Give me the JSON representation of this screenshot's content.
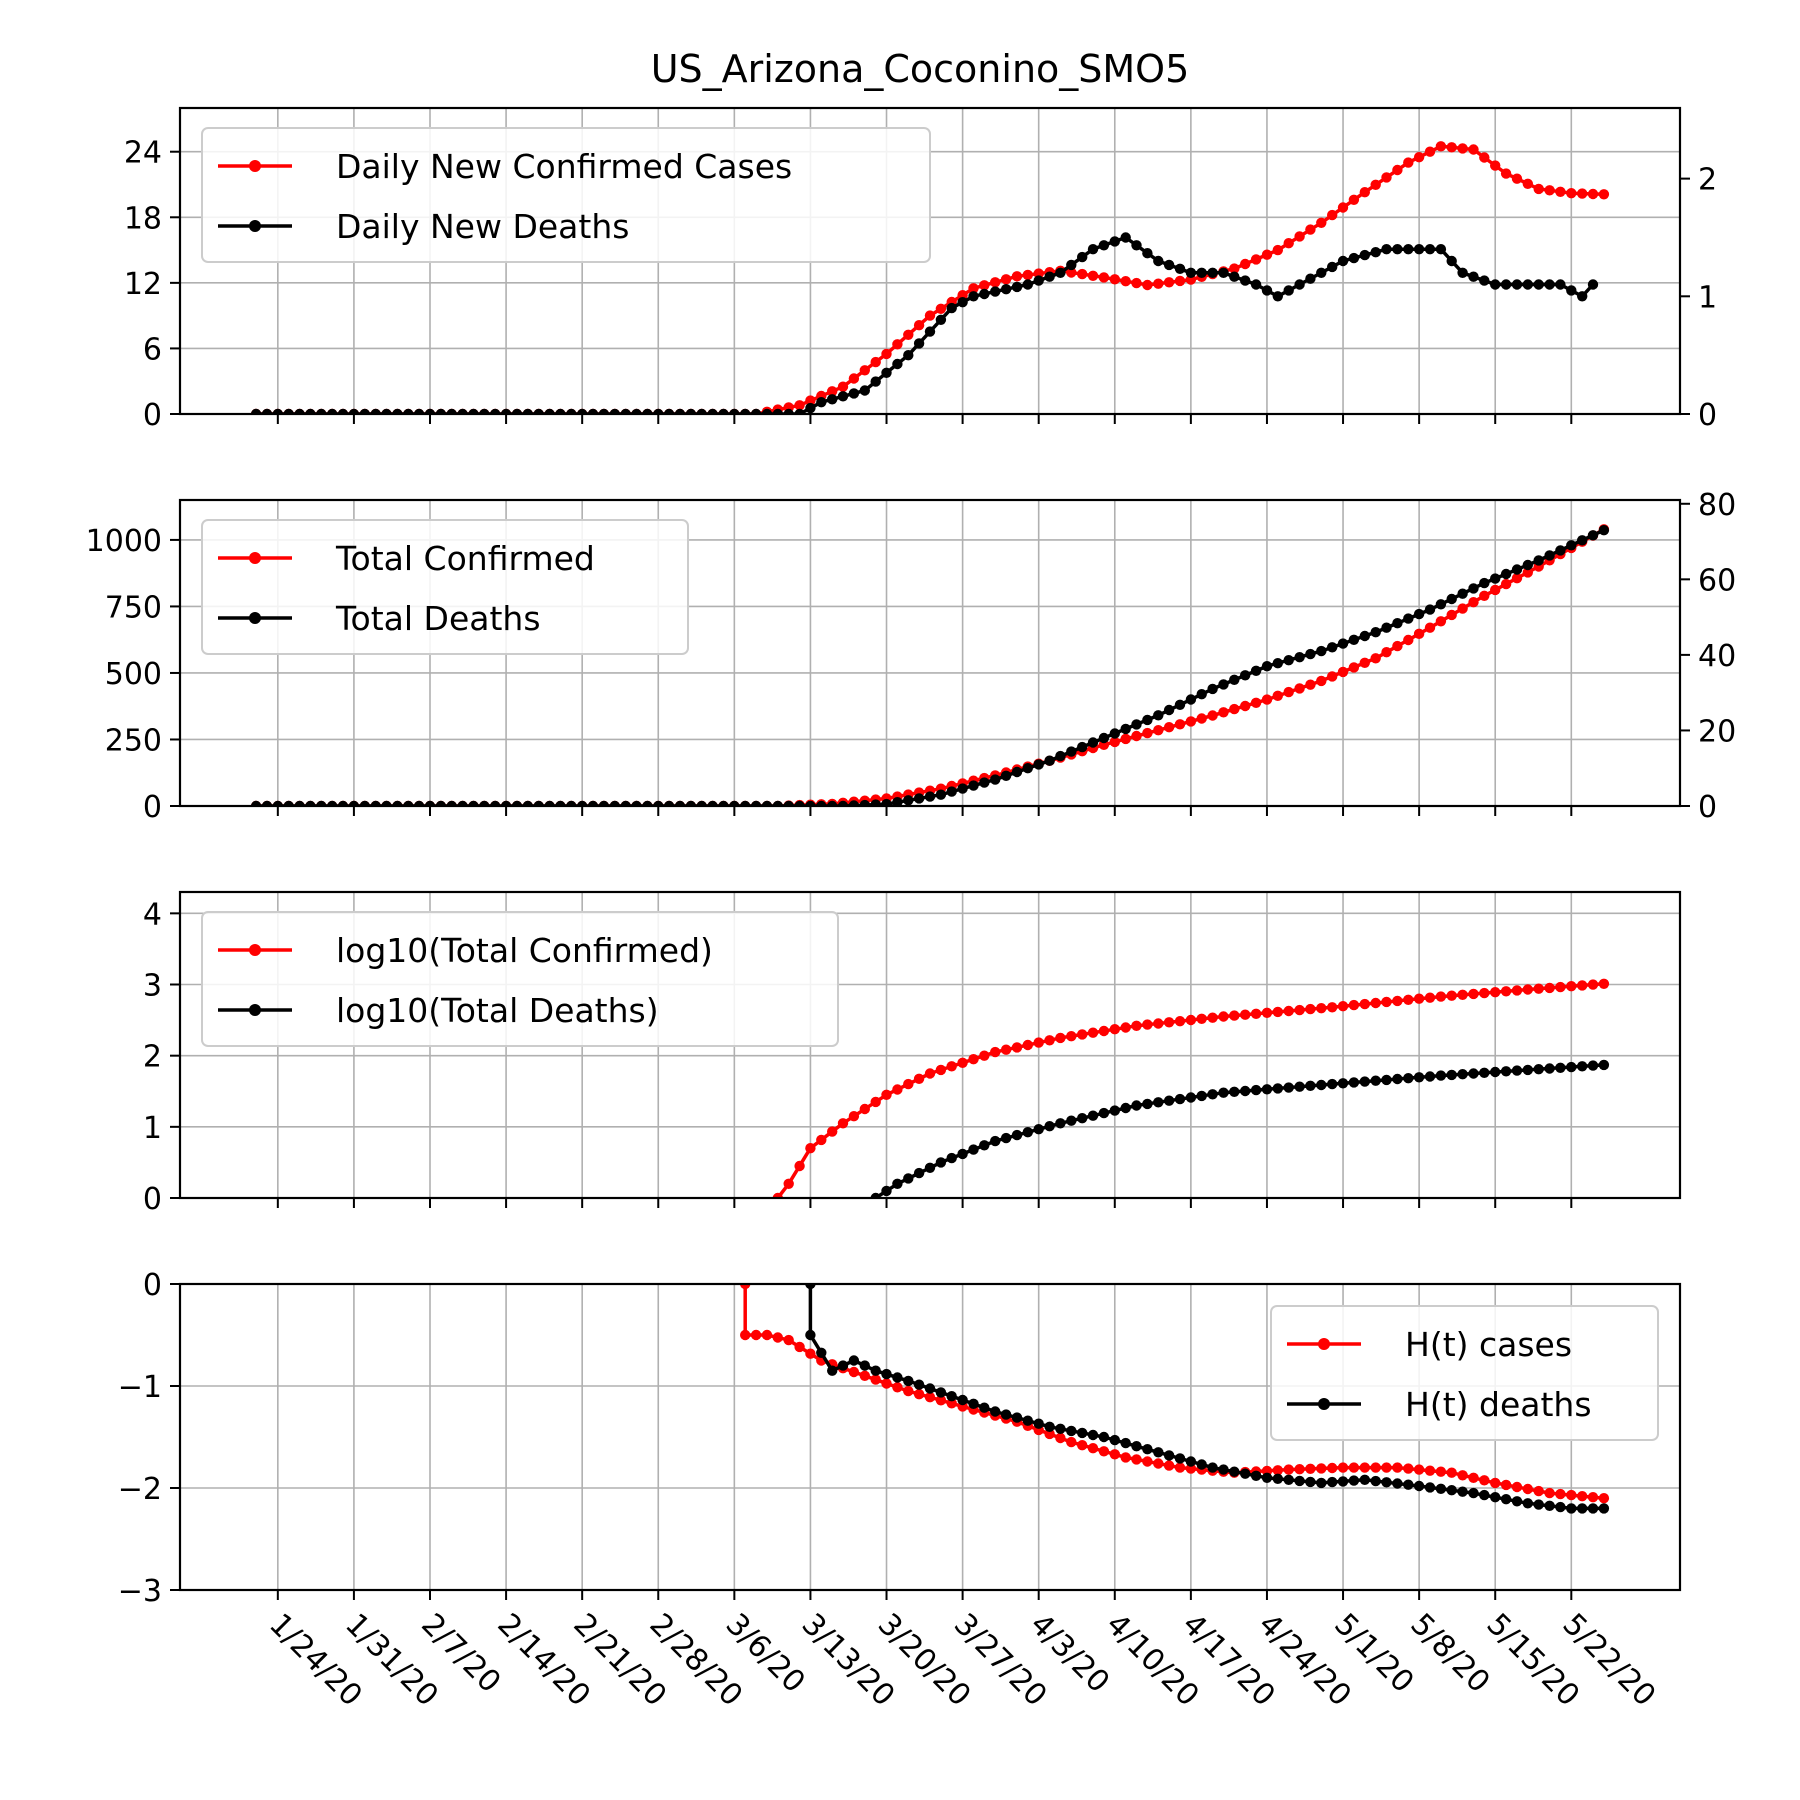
{
  "figure": {
    "title": "US_Arizona_Coconino_SMO5",
    "colors": {
      "cases": "#ff0000",
      "deaths": "#000000",
      "grid": "#b0b0b0"
    },
    "x_tick_labels": [
      "1/24/20",
      "1/31/20",
      "2/7/20",
      "2/14/20",
      "2/21/20",
      "2/28/20",
      "3/6/20",
      "3/13/20",
      "3/20/20",
      "3/27/20",
      "4/3/20",
      "4/10/20",
      "4/17/20",
      "4/24/20",
      "5/1/20",
      "5/8/20",
      "5/15/20",
      "5/22/20"
    ]
  },
  "chart_data": [
    {
      "type": "line",
      "x_axis": "date",
      "x_range": [
        "1/15/20",
        "6/1/20"
      ],
      "ylim": [
        0,
        28
      ],
      "yticks": [
        0,
        6,
        12,
        18,
        24
      ],
      "y2lim": [
        0,
        2.6
      ],
      "y2ticks": [
        0,
        1,
        2
      ],
      "grid": true,
      "legend_position": "upper-left",
      "series": [
        {
          "name": "Daily New Confirmed Cases",
          "axis": "left",
          "color": "#ff0000",
          "points": [
            [
              "1/22/20",
              0
            ],
            [
              "3/8/20",
              0
            ],
            [
              "3/12/20",
              0.8
            ],
            [
              "3/16/20",
              2.5
            ],
            [
              "3/20/20",
              5.5
            ],
            [
              "3/24/20",
              9
            ],
            [
              "3/28/20",
              11.5
            ],
            [
              "4/1/20",
              12.6
            ],
            [
              "4/5/20",
              13.1
            ],
            [
              "4/9/20",
              12.5
            ],
            [
              "4/13/20",
              11.8
            ],
            [
              "4/17/20",
              12.3
            ],
            [
              "4/21/20",
              13.3
            ],
            [
              "4/25/20",
              15
            ],
            [
              "4/29/20",
              17.5
            ],
            [
              "5/3/20",
              20.3
            ],
            [
              "5/7/20",
              23
            ],
            [
              "5/10/20",
              24.5
            ],
            [
              "5/13/20",
              24.2
            ],
            [
              "5/16/20",
              22
            ],
            [
              "5/19/20",
              20.6
            ],
            [
              "5/22/20",
              20.2
            ],
            [
              "5/25/20",
              20.1
            ]
          ]
        },
        {
          "name": "Daily New Deaths",
          "axis": "right",
          "color": "#000000",
          "points": [
            [
              "1/22/20",
              0
            ],
            [
              "3/12/20",
              0
            ],
            [
              "3/14/20",
              0.1
            ],
            [
              "3/18/20",
              0.2
            ],
            [
              "3/20/20",
              0.35
            ],
            [
              "3/22/20",
              0.5
            ],
            [
              "3/24/20",
              0.7
            ],
            [
              "3/26/20",
              0.9
            ],
            [
              "3/28/20",
              1
            ],
            [
              "4/2/20",
              1.1
            ],
            [
              "4/5/20",
              1.2
            ],
            [
              "4/8/20",
              1.4
            ],
            [
              "4/11/20",
              1.5
            ],
            [
              "4/14/20",
              1.3
            ],
            [
              "4/17/20",
              1.2
            ],
            [
              "4/20/20",
              1.2
            ],
            [
              "4/23/20",
              1.1
            ],
            [
              "4/25/20",
              1
            ],
            [
              "4/27/20",
              1.1
            ],
            [
              "5/1/20",
              1.3
            ],
            [
              "5/5/20",
              1.4
            ],
            [
              "5/10/20",
              1.4
            ],
            [
              "5/12/20",
              1.2
            ],
            [
              "5/15/20",
              1.1
            ],
            [
              "5/21/20",
              1.1
            ],
            [
              "5/23/20",
              1
            ],
            [
              "5/24/20",
              1.1
            ]
          ]
        }
      ]
    },
    {
      "type": "line",
      "x_axis": "date",
      "x_range": [
        "1/15/20",
        "6/1/20"
      ],
      "ylim": [
        0,
        1150
      ],
      "yticks": [
        0,
        250,
        500,
        750,
        1000
      ],
      "y2lim": [
        0,
        81
      ],
      "y2ticks": [
        0,
        20,
        40,
        60,
        80
      ],
      "grid": true,
      "legend_position": "upper-left",
      "series": [
        {
          "name": "Total Confirmed",
          "axis": "left",
          "color": "#ff0000",
          "points": [
            [
              "1/22/20",
              0
            ],
            [
              "3/10/20",
              0
            ],
            [
              "3/15/20",
              8
            ],
            [
              "3/20/20",
              28
            ],
            [
              "3/25/20",
              65
            ],
            [
              "3/30/20",
              115
            ],
            [
              "4/4/20",
              170
            ],
            [
              "4/9/20",
              230
            ],
            [
              "4/14/20",
              285
            ],
            [
              "4/19/20",
              340
            ],
            [
              "4/24/20",
              400
            ],
            [
              "4/29/20",
              470
            ],
            [
              "5/4/20",
              555
            ],
            [
              "5/9/20",
              670
            ],
            [
              "5/14/20",
              790
            ],
            [
              "5/19/20",
              900
            ],
            [
              "5/25/20",
              1040
            ]
          ]
        },
        {
          "name": "Total Deaths",
          "axis": "right",
          "color": "#000000",
          "points": [
            [
              "1/22/20",
              0
            ],
            [
              "3/16/20",
              0
            ],
            [
              "3/20/20",
              0.5
            ],
            [
              "3/25/20",
              3
            ],
            [
              "3/30/20",
              7
            ],
            [
              "4/4/20",
              12
            ],
            [
              "4/9/20",
              18
            ],
            [
              "4/14/20",
              24
            ],
            [
              "4/19/20",
              31
            ],
            [
              "4/24/20",
              37
            ],
            [
              "4/29/20",
              41
            ],
            [
              "5/4/20",
              46
            ],
            [
              "5/9/20",
              52
            ],
            [
              "5/14/20",
              59
            ],
            [
              "5/19/20",
              65
            ],
            [
              "5/25/20",
              73
            ]
          ]
        }
      ]
    },
    {
      "type": "line",
      "x_axis": "date",
      "x_range": [
        "1/15/20",
        "6/1/20"
      ],
      "ylim": [
        0,
        4.3
      ],
      "yticks": [
        0,
        1,
        2,
        3,
        4
      ],
      "grid": true,
      "legend_position": "upper-left",
      "series": [
        {
          "name": "log10(Total Confirmed)",
          "color": "#ff0000",
          "points": [
            [
              "3/10/20",
              0
            ],
            [
              "3/11/20",
              0.2
            ],
            [
              "3/13/20",
              0.7
            ],
            [
              "3/16/20",
              1.05
            ],
            [
              "3/20/20",
              1.45
            ],
            [
              "3/24/20",
              1.75
            ],
            [
              "3/30/20",
              2.05
            ],
            [
              "4/5/20",
              2.25
            ],
            [
              "4/12/20",
              2.42
            ],
            [
              "4/20/20",
              2.55
            ],
            [
              "4/30/20",
              2.68
            ],
            [
              "5/10/20",
              2.83
            ],
            [
              "5/18/20",
              2.93
            ],
            [
              "5/25/20",
              3.01
            ]
          ]
        },
        {
          "name": "log10(Total Deaths)",
          "color": "#000000",
          "points": [
            [
              "3/19/20",
              0
            ],
            [
              "3/21/20",
              0.2
            ],
            [
              "3/25/20",
              0.5
            ],
            [
              "3/30/20",
              0.8
            ],
            [
              "4/5/20",
              1.05
            ],
            [
              "4/12/20",
              1.3
            ],
            [
              "4/20/20",
              1.48
            ],
            [
              "4/30/20",
              1.6
            ],
            [
              "5/10/20",
              1.72
            ],
            [
              "5/18/20",
              1.8
            ],
            [
              "5/25/20",
              1.87
            ]
          ]
        }
      ]
    },
    {
      "type": "line",
      "x_axis": "date",
      "x_range": [
        "1/15/20",
        "6/1/20"
      ],
      "ylim": [
        -3,
        0
      ],
      "yticks": [
        0,
        -1,
        -2,
        -3
      ],
      "grid": true,
      "legend_position": "upper-right",
      "series": [
        {
          "name": "H(t) cases",
          "color": "#ff0000",
          "points": [
            [
              "3/7/20",
              0
            ],
            [
              "3/7/20",
              -0.5
            ],
            [
              "3/9/20",
              -0.5
            ],
            [
              "3/11/20",
              -0.55
            ],
            [
              "3/14/20",
              -0.75
            ],
            [
              "3/18/20",
              -0.9
            ],
            [
              "3/22/20",
              -1.05
            ],
            [
              "3/27/20",
              -1.2
            ],
            [
              "4/1/20",
              -1.35
            ],
            [
              "4/6/20",
              -1.55
            ],
            [
              "4/11/20",
              -1.7
            ],
            [
              "4/16/20",
              -1.8
            ],
            [
              "4/21/20",
              -1.85
            ],
            [
              "4/26/20",
              -1.82
            ],
            [
              "5/1/20",
              -1.8
            ],
            [
              "5/6/20",
              -1.8
            ],
            [
              "5/11/20",
              -1.85
            ],
            [
              "5/15/20",
              -1.95
            ],
            [
              "5/20/20",
              -2.05
            ],
            [
              "5/25/20",
              -2.1
            ]
          ]
        },
        {
          "name": "H(t) deaths",
          "color": "#000000",
          "points": [
            [
              "3/13/20",
              0
            ],
            [
              "3/13/20",
              -0.5
            ],
            [
              "3/15/20",
              -0.85
            ],
            [
              "3/17/20",
              -0.75
            ],
            [
              "3/19/20",
              -0.85
            ],
            [
              "3/22/20",
              -0.95
            ],
            [
              "3/26/20",
              -1.1
            ],
            [
              "3/30/20",
              -1.25
            ],
            [
              "4/4/20",
              -1.4
            ],
            [
              "4/9/20",
              -1.5
            ],
            [
              "4/14/20",
              -1.65
            ],
            [
              "4/19/20",
              -1.8
            ],
            [
              "4/24/20",
              -1.9
            ],
            [
              "4/29/20",
              -1.95
            ],
            [
              "5/3/20",
              -1.92
            ],
            [
              "5/8/20",
              -1.98
            ],
            [
              "5/13/20",
              -2.05
            ],
            [
              "5/18/20",
              -2.15
            ],
            [
              "5/22/20",
              -2.2
            ],
            [
              "5/25/20",
              -2.2
            ]
          ]
        }
      ]
    }
  ]
}
